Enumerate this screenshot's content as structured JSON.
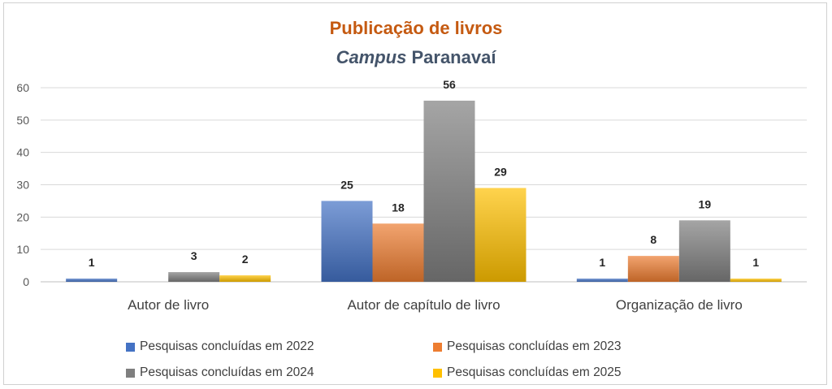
{
  "title_main": "Publicação de livros",
  "title_campus": "Campus",
  "title_rest": " Paranavaí",
  "chart_data": {
    "type": "bar",
    "title": "Publicação de livros Campus Paranavaí",
    "categories": [
      "Autor de livro",
      "Autor de capítulo de livro",
      "Organização de livro"
    ],
    "series": [
      {
        "name": "Pesquisas concluídas em 2022",
        "values": [
          1,
          25,
          1
        ],
        "color": "#4472c4"
      },
      {
        "name": "Pesquisas concluídas em 2023",
        "values": [
          0,
          18,
          8
        ],
        "color": "#ed7d31"
      },
      {
        "name": "Pesquisas concluídas em 2024",
        "values": [
          3,
          56,
          19
        ],
        "color": "#7f7f7f"
      },
      {
        "name": "Pesquisas concluídas em 2025",
        "values": [
          2,
          29,
          1
        ],
        "color": "#ffc000"
      }
    ],
    "data_labels": [
      [
        "1",
        "",
        "3",
        "2"
      ],
      [
        "25",
        "18",
        "56",
        "29"
      ],
      [
        "1",
        "8",
        "19",
        "1"
      ]
    ],
    "yticks": [
      0,
      10,
      20,
      30,
      40,
      50,
      60
    ],
    "ylim": [
      0,
      60
    ],
    "grid": true,
    "legend": "bottom"
  }
}
